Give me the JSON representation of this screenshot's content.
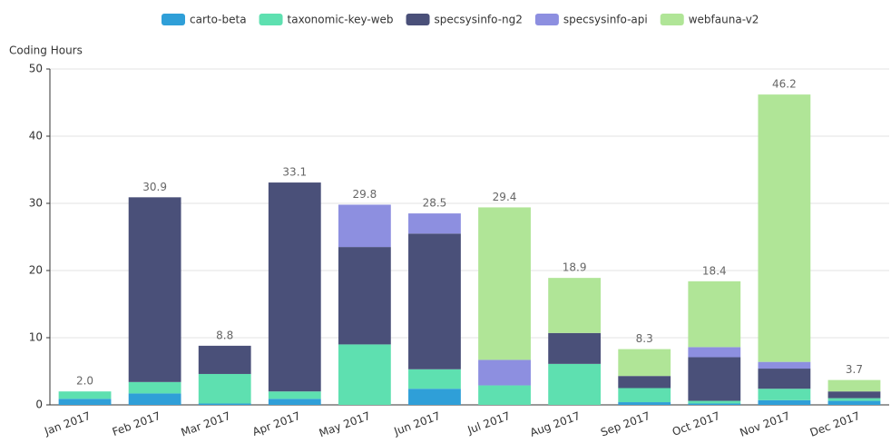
{
  "chart_data": {
    "type": "stacked_bar",
    "y_label": "Coding Hours",
    "categories": [
      "Jan 2017",
      "Feb 2017",
      "Mar 2017",
      "Apr 2017",
      "May 2017",
      "Jun 2017",
      "Jul 2017",
      "Aug 2017",
      "Sep 2017",
      "Oct 2017",
      "Nov 2017",
      "Dec 2017"
    ],
    "series": [
      {
        "name": "carto-beta",
        "color": "#2f9fd8",
        "values": [
          0.9,
          1.7,
          0.2,
          0.9,
          0,
          2.4,
          0,
          0,
          0.4,
          0.2,
          0.7,
          0.6
        ]
      },
      {
        "name": "taxonomic-key-web",
        "color": "#5ee0b0",
        "values": [
          1.1,
          1.7,
          4.4,
          1.1,
          9.0,
          2.9,
          2.9,
          6.1,
          2.1,
          0.4,
          1.7,
          0.4
        ]
      },
      {
        "name": "specsysinfo-ng2",
        "color": "#4a5079",
        "values": [
          0,
          27.5,
          4.2,
          31.1,
          14.5,
          20.2,
          0,
          4.6,
          1.8,
          6.5,
          3.0,
          1.0
        ]
      },
      {
        "name": "specsysinfo-api",
        "color": "#8d8fe0",
        "values": [
          0,
          0,
          0,
          0,
          6.3,
          3.0,
          3.8,
          0,
          0,
          1.5,
          1.0,
          0
        ]
      },
      {
        "name": "webfauna-v2",
        "color": "#b0e597",
        "values": [
          0,
          0,
          0,
          0,
          0,
          0,
          22.7,
          8.2,
          4.0,
          9.8,
          39.8,
          1.7
        ]
      }
    ],
    "total_labels": [
      "2.0",
      "30.9",
      "8.8",
      "33.1",
      "29.8",
      "28.5",
      "29.4",
      "18.9",
      "8.3",
      "18.4",
      "46.2",
      "3.7"
    ],
    "ylim": [
      0,
      50
    ],
    "yticks": [
      0,
      10,
      20,
      30,
      40,
      50
    ],
    "grid": true,
    "legend": "top"
  }
}
